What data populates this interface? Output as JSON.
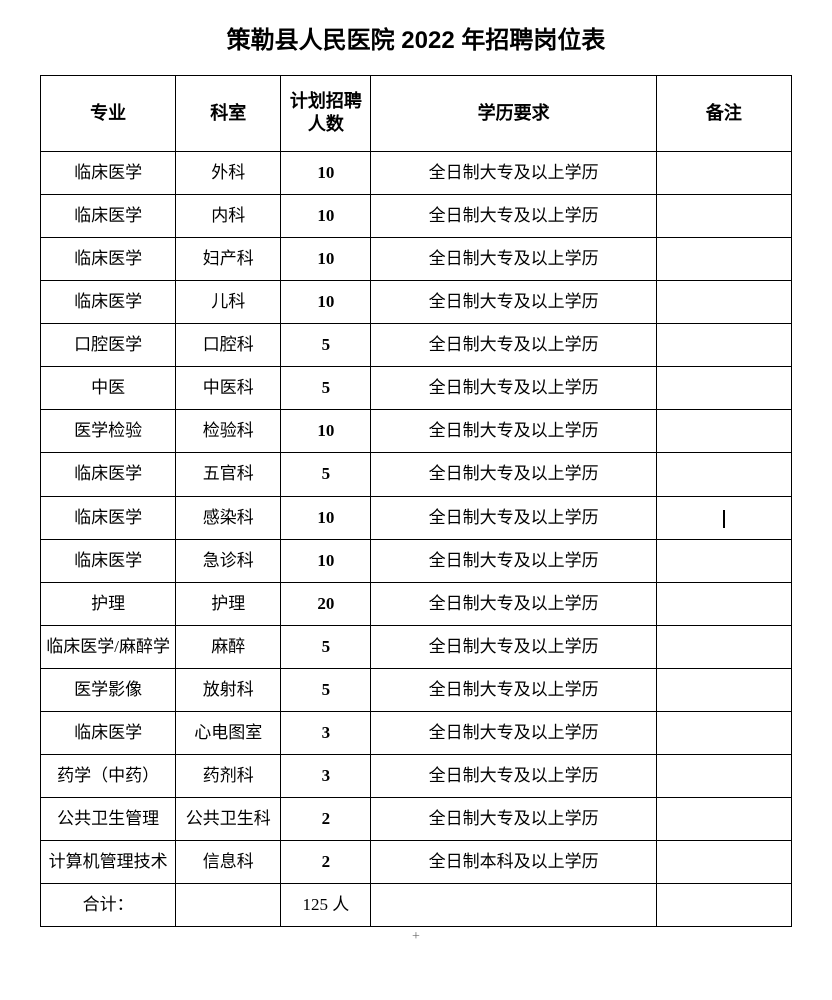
{
  "title": "策勒县人民医院 2022 年招聘岗位表",
  "columns": {
    "major": "专业",
    "department": "科室",
    "count": "计划招聘人数",
    "education": "学历要求",
    "note": "备注"
  },
  "edu_standard": "全日制大专及以上学历",
  "edu_bachelor": "全日制本科及以上学历",
  "rows": [
    {
      "major": "临床医学",
      "department": "外科",
      "count": "10",
      "education": "全日制大专及以上学历",
      "note": ""
    },
    {
      "major": "临床医学",
      "department": "内科",
      "count": "10",
      "education": "全日制大专及以上学历",
      "note": ""
    },
    {
      "major": "临床医学",
      "department": "妇产科",
      "count": "10",
      "education": "全日制大专及以上学历",
      "note": ""
    },
    {
      "major": "临床医学",
      "department": "儿科",
      "count": "10",
      "education": "全日制大专及以上学历",
      "note": ""
    },
    {
      "major": "口腔医学",
      "department": "口腔科",
      "count": "5",
      "education": "全日制大专及以上学历",
      "note": ""
    },
    {
      "major": "中医",
      "department": "中医科",
      "count": "5",
      "education": "全日制大专及以上学历",
      "note": ""
    },
    {
      "major": "医学检验",
      "department": "检验科",
      "count": "10",
      "education": "全日制大专及以上学历",
      "note": ""
    },
    {
      "major": "临床医学",
      "department": "五官科",
      "count": "5",
      "education": "全日制大专及以上学历",
      "note": ""
    },
    {
      "major": "临床医学",
      "department": "感染科",
      "count": "10",
      "education": "全日制大专及以上学历",
      "note": "cursor"
    },
    {
      "major": "临床医学",
      "department": "急诊科",
      "count": "10",
      "education": "全日制大专及以上学历",
      "note": ""
    },
    {
      "major": "护理",
      "department": "护理",
      "count": "20",
      "education": "全日制大专及以上学历",
      "note": ""
    },
    {
      "major": "临床医学/麻醉学",
      "department": "麻醉",
      "count": "5",
      "education": "全日制大专及以上学历",
      "note": ""
    },
    {
      "major": "医学影像",
      "department": "放射科",
      "count": "5",
      "education": "全日制大专及以上学历",
      "note": ""
    },
    {
      "major": "临床医学",
      "department": "心电图室",
      "count": "3",
      "education": "全日制大专及以上学历",
      "note": ""
    },
    {
      "major": "药学（中药）",
      "department": "药剂科",
      "count": "3",
      "education": "全日制大专及以上学历",
      "note": ""
    },
    {
      "major": "公共卫生管理",
      "department": "公共卫生科",
      "count": "2",
      "education": "全日制大专及以上学历",
      "note": ""
    },
    {
      "major": "计算机管理技术",
      "department": "信息科",
      "count": "2",
      "education": "全日制本科及以上学历",
      "note": ""
    }
  ],
  "total": {
    "label": "合计：",
    "count": "125 人"
  },
  "style": {
    "background_color": "#ffffff",
    "border_color": "#000000",
    "title_fontsize": 24,
    "header_fontsize": 18,
    "cell_fontsize": 17,
    "col_widths_pct": [
      18,
      14,
      12,
      38,
      18
    ]
  },
  "bottom_marker": "+"
}
